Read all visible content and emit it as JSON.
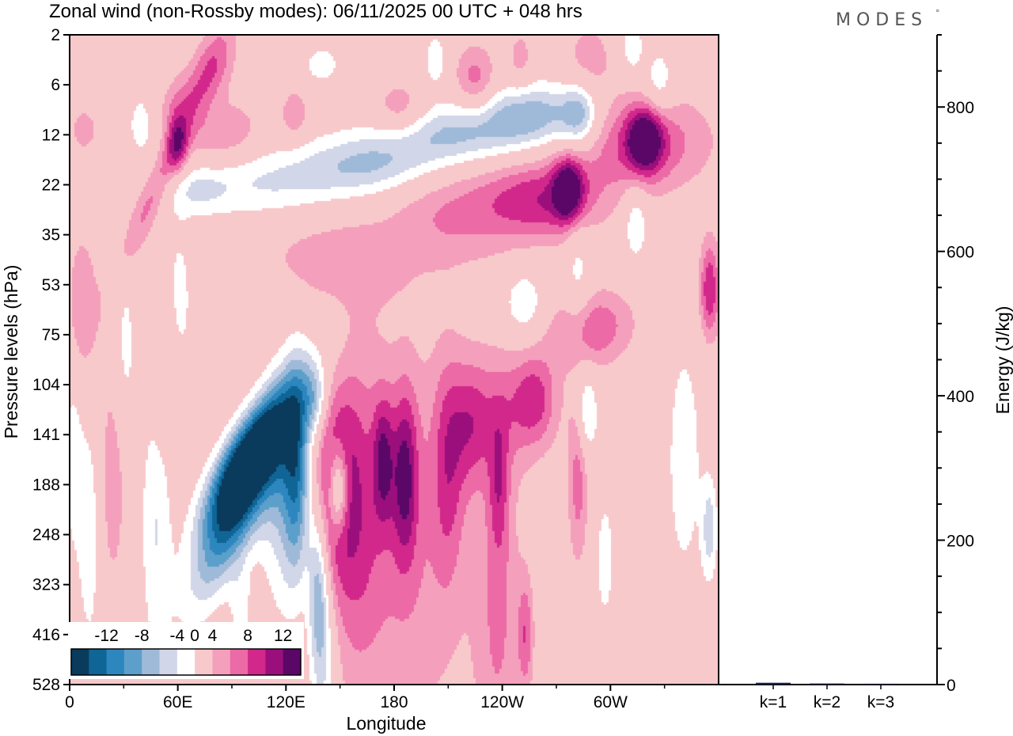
{
  "chart_data": [
    {
      "type": "heatmap",
      "title": "Zonal wind (non-Rossby modes):  06/11/2025  00 UTC  + 048 hrs",
      "brand": "MODES",
      "brand_mark": "°",
      "xlabel": "Longitude",
      "ylabel": "Pressure levels (hPa)",
      "x_ticks": [
        "0",
        "60E",
        "120E",
        "180",
        "120W",
        "60W"
      ],
      "x_tick_degrees": [
        0,
        60,
        120,
        180,
        240,
        300
      ],
      "xlim": [
        0,
        360
      ],
      "y_levels": [
        "2",
        "6",
        "12",
        "22",
        "35",
        "53",
        "75",
        "104",
        "141",
        "188",
        "248",
        "323",
        "416",
        "528"
      ],
      "colorbar": {
        "labels": [
          "-12",
          "-8",
          "-4",
          "0",
          "4",
          "8",
          "12"
        ],
        "levels": [
          -14,
          -12,
          -10,
          -8,
          -6,
          -4,
          -2,
          2,
          4,
          6,
          8,
          10,
          12,
          14
        ],
        "colors": [
          "#0a3a5c",
          "#0f6596",
          "#2e86bf",
          "#5c9fca",
          "#9fbad8",
          "#d1d6e8",
          "#ffffff",
          "#f8c9cb",
          "#f4a0bd",
          "#ec6aa6",
          "#d2288b",
          "#9b0f7c",
          "#5a0768"
        ]
      },
      "features": [
        {
          "lon": 97,
          "level": 8.5,
          "value": -14,
          "lon_width": 10,
          "level_width": 0.9,
          "tilt": -0.9
        },
        {
          "lon": 104,
          "level": 8.9,
          "value": -8,
          "lon_width": 12,
          "level_width": 1.5,
          "tilt": -0.8
        },
        {
          "lon": 90,
          "level": 9.6,
          "value": -6,
          "lon_width": 9,
          "level_width": 1.1,
          "tilt": -0.7
        },
        {
          "lon": 126,
          "level": 8.8,
          "value": -9,
          "lon_width": 5,
          "level_width": 1.4,
          "tilt": 0
        },
        {
          "lon": 118,
          "level": 9.3,
          "value": -5,
          "lon_width": 8,
          "level_width": 1.6,
          "tilt": 0
        },
        {
          "lon": 136,
          "level": 7.3,
          "value": -5,
          "lon_width": 5,
          "level_width": 0.5,
          "tilt": 0
        },
        {
          "lon": 138,
          "level": 11.0,
          "value": -7,
          "lon_width": 4,
          "level_width": 1.2,
          "tilt": 0
        },
        {
          "lon": 141,
          "level": 12.5,
          "value": -4,
          "lon_width": 5,
          "level_width": 1.3,
          "tilt": 0
        },
        {
          "lon": 48,
          "level": 9.8,
          "value": -4,
          "lon_width": 6,
          "level_width": 1.8,
          "tilt": 0
        },
        {
          "lon": 11,
          "level": 10.0,
          "value": -4,
          "lon_width": 4,
          "level_width": 1.5,
          "tilt": 0
        },
        {
          "lon": 61,
          "level": 5.3,
          "value": -3,
          "lon_width": 5,
          "level_width": 1.1,
          "tilt": 0
        },
        {
          "lon": 31,
          "level": 6.3,
          "value": -3,
          "lon_width": 4,
          "level_width": 1.2,
          "tilt": 0
        },
        {
          "lon": 165,
          "level": 2.6,
          "value": -6,
          "lon_width": 26,
          "level_width": 0.45,
          "tilt": -0.2
        },
        {
          "lon": 213,
          "level": 2.0,
          "value": -6,
          "lon_width": 26,
          "level_width": 0.45,
          "tilt": -0.2
        },
        {
          "lon": 257,
          "level": 1.6,
          "value": -7,
          "lon_width": 20,
          "level_width": 0.45,
          "tilt": -0.2
        },
        {
          "lon": 283,
          "level": 1.6,
          "value": -6,
          "lon_width": 7,
          "level_width": 0.45,
          "tilt": 0
        },
        {
          "lon": 107,
          "level": 3.0,
          "value": -4,
          "lon_width": 30,
          "level_width": 0.5,
          "tilt": 0
        },
        {
          "lon": 70,
          "level": 3.1,
          "value": -3,
          "lon_width": 12,
          "level_width": 0.35,
          "tilt": 0
        },
        {
          "lon": 40,
          "level": 1.8,
          "value": -3,
          "lon_width": 6,
          "level_width": 0.5,
          "tilt": 0
        },
        {
          "lon": 203,
          "level": 0.5,
          "value": -4,
          "lon_width": 4,
          "level_width": 0.35,
          "tilt": 0
        },
        {
          "lon": 140,
          "level": 0.6,
          "value": -3,
          "lon_width": 8,
          "level_width": 0.3,
          "tilt": 0
        },
        {
          "lon": 312,
          "level": 0.2,
          "value": -4,
          "lon_width": 4,
          "level_width": 0.4,
          "tilt": 0
        },
        {
          "lon": 327,
          "level": 1.0,
          "value": -4,
          "lon_width": 6,
          "level_width": 0.5,
          "tilt": 0
        },
        {
          "lon": 314,
          "level": 3.7,
          "value": -4,
          "lon_width": 5,
          "level_width": 0.6,
          "tilt": 0
        },
        {
          "lon": 252,
          "level": 5.4,
          "value": -4,
          "lon_width": 8,
          "level_width": 0.5,
          "tilt": 0
        },
        {
          "lon": 287,
          "level": 7.6,
          "value": -5,
          "lon_width": 4,
          "level_width": 0.6,
          "tilt": 0
        },
        {
          "lon": 282,
          "level": 4.9,
          "value": -3,
          "lon_width": 5,
          "level_width": 1.3,
          "tilt": 0
        },
        {
          "lon": 341,
          "level": 8.5,
          "value": -3,
          "lon_width": 8,
          "level_width": 2.0,
          "tilt": 0
        },
        {
          "lon": 355,
          "level": 9.9,
          "value": -5,
          "lon_width": 3,
          "level_width": 0.7,
          "tilt": 0
        },
        {
          "lon": 297,
          "level": 10.5,
          "value": -3,
          "lon_width": 4,
          "level_width": 1.0,
          "tilt": 0
        },
        {
          "lon": 2,
          "level": 8.5,
          "value": -3,
          "lon_width": 4,
          "level_width": 1.5,
          "tilt": 0
        },
        {
          "lon": 95,
          "level": 11.5,
          "value": -3,
          "lon_width": 4,
          "level_width": 0.6,
          "tilt": 0
        },
        {
          "lon": 149,
          "level": 9.1,
          "value": -12,
          "lon_width": 4,
          "level_width": 0.65,
          "tilt": 0
        },
        {
          "lon": 148,
          "level": 8.9,
          "value": -2,
          "lon_width": 6,
          "level_width": 1.6,
          "tilt": 0
        },
        {
          "lon": 147,
          "level": 9.0,
          "value": 10,
          "lon_width": 7,
          "level_width": 1.3,
          "tilt": 0
        },
        {
          "lon": 158,
          "level": 9.4,
          "value": 5,
          "lon_width": 10,
          "level_width": 2.2,
          "tilt": 0
        },
        {
          "lon": 174,
          "level": 8.5,
          "value": 7,
          "lon_width": 4,
          "level_width": 0.9,
          "tilt": 0
        },
        {
          "lon": 186,
          "level": 8.8,
          "value": 8,
          "lon_width": 5,
          "level_width": 1.2,
          "tilt": 0
        },
        {
          "lon": 185,
          "level": 10.3,
          "value": 4,
          "lon_width": 26,
          "level_width": 2.8,
          "tilt": 0
        },
        {
          "lon": 210,
          "level": 8.7,
          "value": 5,
          "lon_width": 6,
          "level_width": 1.5,
          "tilt": 0
        },
        {
          "lon": 222,
          "level": 7.9,
          "value": 4,
          "lon_width": 7,
          "level_width": 0.9,
          "tilt": 0
        },
        {
          "lon": 238,
          "level": 9.0,
          "value": 5,
          "lon_width": 4,
          "level_width": 1.0,
          "tilt": 0
        },
        {
          "lon": 240,
          "level": 7.5,
          "value": 4,
          "lon_width": 20,
          "level_width": 0.9,
          "tilt": 0
        },
        {
          "lon": 258,
          "level": 7.3,
          "value": 5,
          "lon_width": 8,
          "level_width": 0.6,
          "tilt": 0
        },
        {
          "lon": 238,
          "level": 11.8,
          "value": 4,
          "lon_width": 9,
          "level_width": 2.3,
          "tilt": 0
        },
        {
          "lon": 253,
          "level": 12.0,
          "value": 5,
          "lon_width": 3,
          "level_width": 0.8,
          "tilt": 0
        },
        {
          "lon": 282,
          "level": 8.9,
          "value": 5,
          "lon_width": 4,
          "level_width": 1.2,
          "tilt": 0
        },
        {
          "lon": 24,
          "level": 8.9,
          "value": 3,
          "lon_width": 6,
          "level_width": 1.8,
          "tilt": 0
        },
        {
          "lon": 53,
          "level": 6.8,
          "value": 3,
          "lon_width": 5,
          "level_width": 1.0,
          "tilt": 0
        },
        {
          "lon": 7,
          "level": 5.4,
          "value": 4,
          "lon_width": 6,
          "level_width": 1.0,
          "tilt": 0
        },
        {
          "lon": 289,
          "level": 5.9,
          "value": 6,
          "lon_width": 16,
          "level_width": 0.55,
          "tilt": -0.3
        },
        {
          "lon": 355,
          "level": 5.1,
          "value": 8,
          "lon_width": 4,
          "level_width": 0.7,
          "tilt": 0
        },
        {
          "lon": 277,
          "level": 3.1,
          "value": 10,
          "lon_width": 6,
          "level_width": 0.45,
          "tilt": 0
        },
        {
          "lon": 262,
          "level": 3.3,
          "value": 7,
          "lon_width": 22,
          "level_width": 0.55,
          "tilt": 0
        },
        {
          "lon": 214,
          "level": 3.6,
          "value": 4,
          "lon_width": 26,
          "level_width": 0.7,
          "tilt": 0
        },
        {
          "lon": 319,
          "level": 2.1,
          "value": 10,
          "lon_width": 7,
          "level_width": 0.45,
          "tilt": 0
        },
        {
          "lon": 318,
          "level": 2.2,
          "value": 6,
          "lon_width": 26,
          "level_width": 0.7,
          "tilt": -0.15
        },
        {
          "lon": 60,
          "level": 2.2,
          "value": 6,
          "lon_width": 4,
          "level_width": 0.45,
          "tilt": 0
        },
        {
          "lon": 50,
          "level": 2.9,
          "value": 5,
          "lon_width": 6,
          "level_width": 1.4,
          "tilt": -0.8
        },
        {
          "lon": 85,
          "level": 2.0,
          "value": 4,
          "lon_width": 15,
          "level_width": 0.45,
          "tilt": -0.4
        },
        {
          "lon": 60,
          "level": 1.3,
          "value": 3,
          "lon_width": 8,
          "level_width": 0.45,
          "tilt": -0.5
        },
        {
          "lon": 125,
          "level": 1.6,
          "value": 4,
          "lon_width": 5,
          "level_width": 0.35,
          "tilt": 0
        },
        {
          "lon": 80,
          "level": 0.6,
          "value": 5,
          "lon_width": 8,
          "level_width": 0.6,
          "tilt": -0.4
        },
        {
          "lon": 183,
          "level": 1.5,
          "value": 4,
          "lon_width": 10,
          "level_width": 0.4,
          "tilt": 0
        },
        {
          "lon": 225,
          "level": 0.9,
          "value": 5,
          "lon_width": 8,
          "level_width": 0.5,
          "tilt": 0
        },
        {
          "lon": 288,
          "level": 0.5,
          "value": 3,
          "lon_width": 10,
          "level_width": 0.6,
          "tilt": 0
        },
        {
          "lon": 250,
          "level": 0.5,
          "value": 3,
          "lon_width": 5,
          "level_width": 0.45,
          "tilt": 0
        },
        {
          "lon": 8,
          "level": 1.9,
          "value": 3,
          "lon_width": 6,
          "level_width": 0.35,
          "tilt": 0
        },
        {
          "lon": 145,
          "level": 4.5,
          "value": 3,
          "lon_width": 30,
          "level_width": 0.7,
          "tilt": 0.3
        }
      ]
    },
    {
      "type": "bar",
      "ylabel": "Energy (J/kg)",
      "categories": [
        "k=1",
        "k=2",
        "k=3"
      ],
      "values": [
        2.5,
        1.5,
        1.2
      ],
      "ylim": [
        0,
        900
      ],
      "y_ticks": [
        0,
        200,
        400,
        600,
        800
      ],
      "bar_color": "#1a1f4a"
    }
  ]
}
